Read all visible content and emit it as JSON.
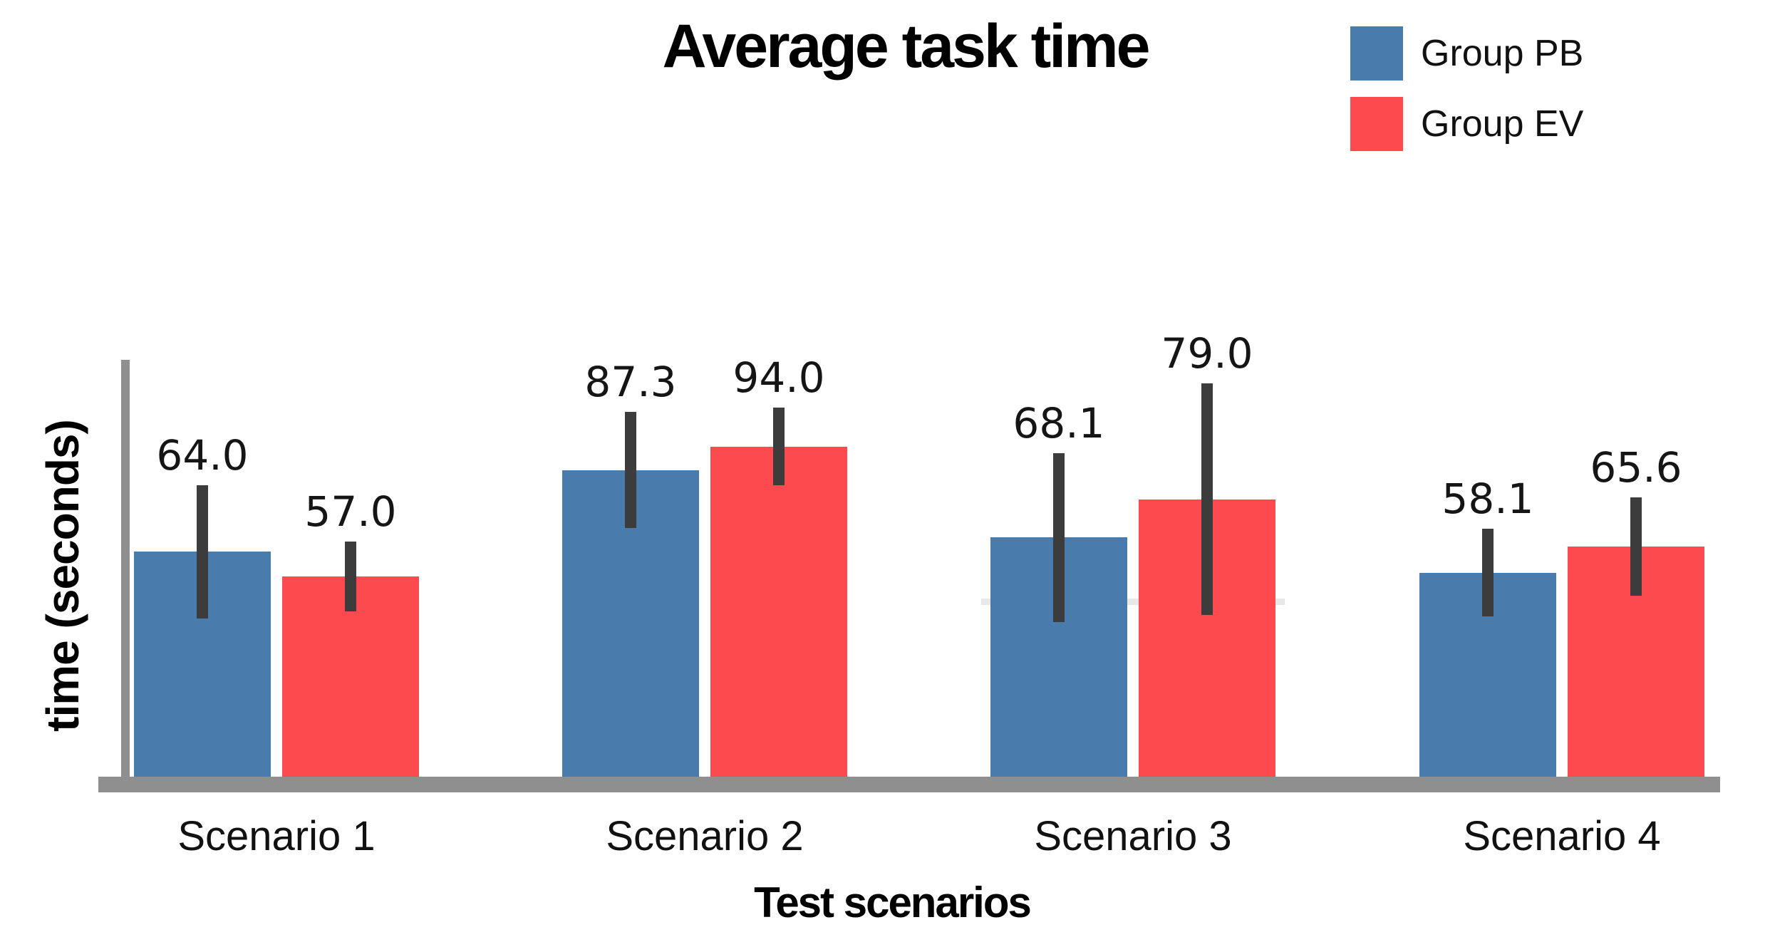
{
  "chart_data": {
    "type": "bar",
    "title": "Average task time",
    "xlabel": "Test scenarios",
    "ylabel": "time (seconds)",
    "categories": [
      "Scenario 1",
      "Scenario 2",
      "Scenario 3",
      "Scenario 4"
    ],
    "series": [
      {
        "name": "Group PB",
        "color": "#4A7BAD",
        "values": [
          64.0,
          87.3,
          68.1,
          58.1
        ],
        "errors": [
          19.0,
          16.5,
          24.0,
          12.5
        ]
      },
      {
        "name": "Group EV",
        "color": "#FC4A4E",
        "values": [
          57.0,
          94.0,
          79.0,
          65.6
        ],
        "errors": [
          10.0,
          11.0,
          33.0,
          14.0
        ]
      }
    ],
    "value_label_format": "one_decimal",
    "ylim": [
      0,
      105
    ],
    "grid": false,
    "faint_gridline": {
      "y_value": 50,
      "span_category_index": 2
    },
    "legend_position": "top-right",
    "error_bar_color": "#3C3C3C",
    "axis_color": "#8F8F8F",
    "faint_gridline_color": "#E8E8E8",
    "background_color": "#FFFFFF",
    "label_text_color": "#151515"
  }
}
